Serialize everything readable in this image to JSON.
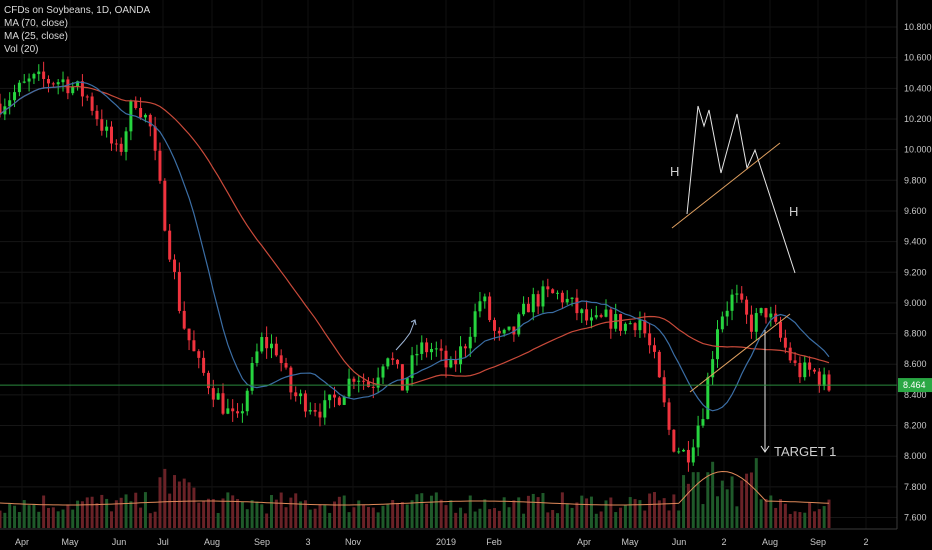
{
  "legend": {
    "symbol": "CFDs on Soybeans, 1D, OANDA",
    "ma1": "MA (70, close)",
    "ma2": "MA (25, close)",
    "vol": "Vol (20)"
  },
  "chart_data": {
    "type": "candlestick",
    "title": "CFDs on Soybeans, 1D, OANDA",
    "y_ticks": [
      "10.800",
      "10.600",
      "10.400",
      "10.200",
      "10.000",
      "9.800",
      "9.600",
      "9.400",
      "9.200",
      "9.000",
      "8.800",
      "8.600",
      "8.400",
      "8.200",
      "8.000",
      "7.800",
      "7.600"
    ],
    "ylim": [
      7.55,
      10.88
    ],
    "x_ticks": [
      "Apr",
      "May",
      "Jun",
      "Jul",
      "Aug",
      "Sep",
      "3",
      "Nov",
      "2019",
      "Feb",
      "Apr",
      "May",
      "Jun",
      "2",
      "Aug",
      "Sep",
      "2"
    ],
    "last_price": "8.464",
    "close_path": [
      {
        "t": 0,
        "v": 10.3
      },
      {
        "t": 4,
        "v": 10.45
      },
      {
        "t": 8,
        "v": 10.45
      },
      {
        "t": 11,
        "v": 10.35
      },
      {
        "t": 15,
        "v": 9.95
      },
      {
        "t": 17,
        "v": 10.35
      },
      {
        "t": 19,
        "v": 10.15
      },
      {
        "t": 21,
        "v": 9.5
      },
      {
        "t": 23,
        "v": 8.9
      },
      {
        "t": 25,
        "v": 8.6
      },
      {
        "t": 28,
        "v": 8.35
      },
      {
        "t": 30,
        "v": 8.2
      },
      {
        "t": 33,
        "v": 8.75
      },
      {
        "t": 35,
        "v": 8.7
      },
      {
        "t": 37,
        "v": 8.4
      },
      {
        "t": 39,
        "v": 8.35
      },
      {
        "t": 41,
        "v": 8.3
      },
      {
        "t": 43,
        "v": 8.4
      },
      {
        "t": 45,
        "v": 8.55
      },
      {
        "t": 47,
        "v": 8.45
      },
      {
        "t": 49,
        "v": 8.7
      },
      {
        "t": 51,
        "v": 8.45
      },
      {
        "t": 53,
        "v": 8.7
      },
      {
        "t": 55,
        "v": 8.7
      },
      {
        "t": 57,
        "v": 8.55
      },
      {
        "t": 59,
        "v": 8.75
      },
      {
        "t": 61,
        "v": 9.05
      },
      {
        "t": 63,
        "v": 8.75
      },
      {
        "t": 65,
        "v": 8.8
      },
      {
        "t": 67,
        "v": 9.0
      },
      {
        "t": 69,
        "v": 9.05
      },
      {
        "t": 71,
        "v": 9.05
      },
      {
        "t": 73,
        "v": 8.95
      },
      {
        "t": 75,
        "v": 8.85
      },
      {
        "t": 77,
        "v": 8.9
      },
      {
        "t": 79,
        "v": 8.85
      },
      {
        "t": 81,
        "v": 8.9
      },
      {
        "t": 83,
        "v": 8.6
      },
      {
        "t": 85,
        "v": 8.1
      },
      {
        "t": 87,
        "v": 8.0
      },
      {
        "t": 89,
        "v": 8.3
      },
      {
        "t": 91,
        "v": 8.9
      },
      {
        "t": 93,
        "v": 9.05
      },
      {
        "t": 95,
        "v": 8.85
      },
      {
        "t": 97,
        "v": 8.95
      },
      {
        "t": 99,
        "v": 8.75
      },
      {
        "t": 101,
        "v": 8.55
      },
      {
        "t": 103,
        "v": 8.55
      },
      {
        "t": 105,
        "v": 8.45
      }
    ],
    "annotations": [
      {
        "text": "H"
      },
      {
        "text": "H"
      },
      {
        "text": "TARGET 1"
      }
    ]
  }
}
